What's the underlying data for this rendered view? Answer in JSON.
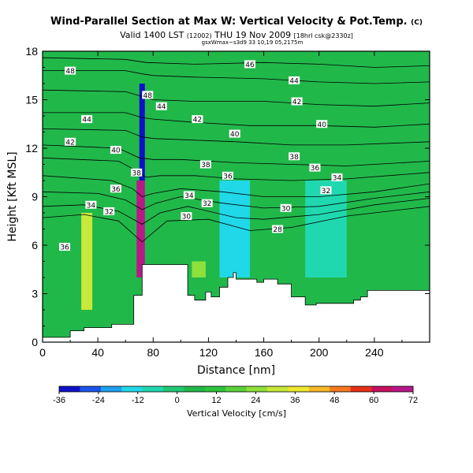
{
  "header": {
    "title": "Wind-Parallel Section at Max W: Vertical Velocity & Pot.Temp.",
    "title_mark": "(C)",
    "subtitle": "Valid 1400 LST",
    "subtitle_small1": "(12002)",
    "subtitle_date": "THU 19 Nov 2009",
    "subtitle_small2": "[18hrl csk@2330z]",
    "id_line": "gsxWmax~s3d9 33 10,19 05,2175m"
  },
  "chart_data": {
    "type": "heatmap",
    "title": "Wind-Parallel Section at Max W: Vertical Velocity & Pot.Temp.",
    "xlabel": "Distance [nm]",
    "ylabel": "Height [Kft MSL]",
    "xlim": [
      0,
      280
    ],
    "ylim": [
      0,
      18
    ],
    "xticks": [
      0,
      40,
      80,
      120,
      160,
      200,
      240
    ],
    "yticks": [
      0,
      3,
      6,
      9,
      12,
      15,
      18
    ],
    "colorbar": {
      "label": "Vertical Velocity [cm/s]",
      "ticks": [
        -36,
        -24,
        -12,
        0,
        12,
        24,
        36,
        48,
        60,
        72
      ],
      "colors": [
        "#1010c8",
        "#1a55e8",
        "#1ea0f0",
        "#20d8e8",
        "#20d8b0",
        "#22c870",
        "#21b84a",
        "#2ec43c",
        "#5ad23a",
        "#8ee03a",
        "#c8e83a",
        "#f0e830",
        "#f8b828",
        "#f87820",
        "#e83018",
        "#c81060",
        "#b81888"
      ]
    },
    "w_cells": [
      {
        "x": [
          28,
          36
        ],
        "y": [
          2,
          8
        ],
        "w": 30
      },
      {
        "x": [
          68,
          74
        ],
        "y": [
          4,
          10
        ],
        "w": 70
      },
      {
        "x": [
          70,
          74
        ],
        "y": [
          10,
          16
        ],
        "w": -34
      },
      {
        "x": [
          108,
          118
        ],
        "y": [
          4,
          5
        ],
        "w": 24
      },
      {
        "x": [
          128,
          150
        ],
        "y": [
          4,
          10
        ],
        "w": -12
      },
      {
        "x": [
          190,
          220
        ],
        "y": [
          4,
          10
        ],
        "w": -8
      }
    ],
    "terrain": {
      "x": [
        0,
        20,
        20,
        30,
        30,
        50,
        50,
        66,
        66,
        72,
        72,
        105,
        105,
        110,
        110,
        118,
        118,
        122,
        122,
        128,
        128,
        134,
        134,
        138,
        138,
        140,
        140,
        155,
        155,
        160,
        160,
        170,
        170,
        180,
        180,
        190,
        190,
        198,
        198,
        225,
        225,
        230,
        230,
        235,
        235,
        280
      ],
      "y": [
        0.3,
        0.3,
        0.7,
        0.7,
        0.9,
        0.9,
        1.1,
        1.1,
        2.9,
        2.9,
        4.8,
        4.8,
        2.9,
        2.9,
        2.6,
        2.6,
        3.1,
        3.1,
        2.8,
        2.8,
        3.4,
        3.4,
        4.0,
        4.0,
        4.3,
        4.3,
        3.9,
        3.9,
        3.7,
        3.7,
        3.9,
        3.9,
        3.6,
        3.6,
        2.8,
        2.8,
        2.3,
        2.3,
        2.4,
        2.4,
        2.6,
        2.6,
        2.8,
        2.8,
        3.2,
        3.2
      ]
    },
    "isentrope_labels": [
      {
        "x": 20,
        "y": 16.8,
        "text": "48"
      },
      {
        "x": 150,
        "y": 17.2,
        "text": "46"
      },
      {
        "x": 182,
        "y": 16.2,
        "text": "44"
      },
      {
        "x": 76,
        "y": 15.3,
        "text": "48"
      },
      {
        "x": 86,
        "y": 14.6,
        "text": "44"
      },
      {
        "x": 184,
        "y": 14.9,
        "text": "42"
      },
      {
        "x": 32,
        "y": 13.8,
        "text": "44"
      },
      {
        "x": 112,
        "y": 13.8,
        "text": "42"
      },
      {
        "x": 202,
        "y": 13.5,
        "text": "40"
      },
      {
        "x": 20,
        "y": 12.4,
        "text": "42"
      },
      {
        "x": 139,
        "y": 12.9,
        "text": "40"
      },
      {
        "x": 53,
        "y": 11.9,
        "text": "40"
      },
      {
        "x": 182,
        "y": 11.5,
        "text": "38"
      },
      {
        "x": 118,
        "y": 11.0,
        "text": "38"
      },
      {
        "x": 197,
        "y": 10.8,
        "text": "36"
      },
      {
        "x": 68,
        "y": 10.5,
        "text": "38"
      },
      {
        "x": 134,
        "y": 10.3,
        "text": "36"
      },
      {
        "x": 213,
        "y": 10.2,
        "text": "34"
      },
      {
        "x": 53,
        "y": 9.5,
        "text": "36"
      },
      {
        "x": 205,
        "y": 9.4,
        "text": "32"
      },
      {
        "x": 106,
        "y": 9.1,
        "text": "34"
      },
      {
        "x": 119,
        "y": 8.6,
        "text": "32"
      },
      {
        "x": 35,
        "y": 8.5,
        "text": "34"
      },
      {
        "x": 48,
        "y": 8.1,
        "text": "32"
      },
      {
        "x": 176,
        "y": 8.3,
        "text": "30"
      },
      {
        "x": 104,
        "y": 7.8,
        "text": "30"
      },
      {
        "x": 170,
        "y": 7.0,
        "text": "28"
      },
      {
        "x": 16,
        "y": 5.9,
        "text": "36"
      }
    ],
    "contours": [
      {
        "x": [
          0,
          60,
          75,
          110,
          160,
          200,
          240,
          280
        ],
        "y": [
          17.6,
          17.5,
          17.3,
          17.2,
          17.3,
          17.2,
          17.0,
          17.1
        ]
      },
      {
        "x": [
          0,
          60,
          72,
          80,
          110,
          160,
          200,
          240,
          280
        ],
        "y": [
          16.8,
          16.8,
          16.6,
          16.5,
          16.4,
          16.3,
          16.1,
          16.0,
          16.1
        ]
      },
      {
        "x": [
          0,
          60,
          72,
          80,
          110,
          160,
          200,
          240,
          280
        ],
        "y": [
          15.6,
          15.5,
          15.2,
          15.0,
          14.9,
          14.9,
          14.7,
          14.6,
          14.8
        ]
      },
      {
        "x": [
          0,
          60,
          72,
          80,
          110,
          150,
          200,
          240,
          280
        ],
        "y": [
          14.2,
          14.2,
          13.9,
          13.8,
          13.6,
          13.4,
          13.4,
          13.3,
          13.5
        ]
      },
      {
        "x": [
          0,
          60,
          72,
          80,
          110,
          140,
          180,
          220,
          280
        ],
        "y": [
          13.2,
          13.1,
          12.7,
          12.6,
          12.5,
          12.4,
          12.2,
          12.2,
          12.4
        ]
      },
      {
        "x": [
          0,
          55,
          70,
          80,
          100,
          140,
          180,
          220,
          280
        ],
        "y": [
          12.2,
          12.0,
          11.4,
          11.3,
          11.3,
          11.1,
          11.0,
          10.9,
          11.2
        ]
      },
      {
        "x": [
          0,
          55,
          68,
          75,
          85,
          110,
          140,
          180,
          220,
          280
        ],
        "y": [
          11.4,
          11.2,
          10.6,
          10.2,
          10.3,
          10.3,
          10.1,
          10.0,
          10.1,
          10.5
        ]
      },
      {
        "x": [
          0,
          50,
          65,
          72,
          80,
          100,
          130,
          160,
          200,
          240,
          280
        ],
        "y": [
          10.3,
          10.0,
          9.5,
          9.0,
          9.2,
          9.5,
          9.3,
          9.0,
          9.0,
          9.3,
          9.8
        ]
      },
      {
        "x": [
          0,
          40,
          60,
          72,
          82,
          100,
          130,
          160,
          200,
          240,
          280
        ],
        "y": [
          9.3,
          9.2,
          8.8,
          8.2,
          8.6,
          9.0,
          8.6,
          8.3,
          8.4,
          8.9,
          9.3
        ]
      },
      {
        "x": [
          0,
          30,
          55,
          72,
          85,
          105,
          140,
          160,
          200,
          240,
          280
        ],
        "y": [
          8.4,
          8.5,
          8.1,
          7.3,
          8.0,
          8.4,
          7.7,
          7.6,
          7.9,
          8.5,
          8.9
        ]
      },
      {
        "x": [
          0,
          30,
          55,
          72,
          90,
          120,
          150,
          180,
          220,
          280
        ],
        "y": [
          7.7,
          7.9,
          7.5,
          6.2,
          7.5,
          7.6,
          6.9,
          7.1,
          7.8,
          8.4
        ]
      }
    ]
  },
  "colorbar_label": "Vertical Velocity [cm/s]"
}
